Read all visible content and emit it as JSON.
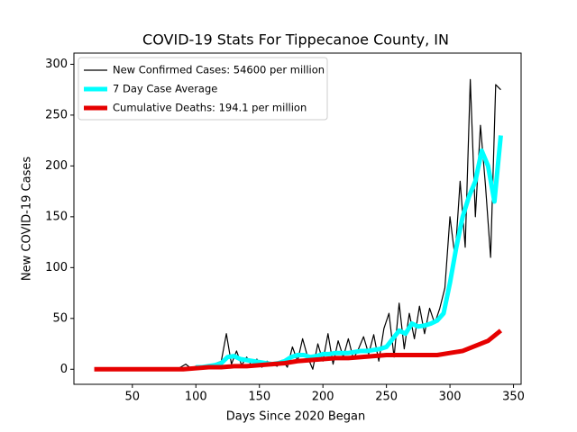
{
  "chart_data": {
    "type": "line",
    "title": "COVID-19 Stats For Tippecanoe County, IN",
    "xlabel": "Days Since 2020 Began",
    "ylabel": "New COVID-19 Cases",
    "xlim": [
      4,
      356
    ],
    "ylim": [
      -14.8,
      311
    ],
    "xticks": [
      50,
      100,
      150,
      200,
      250,
      300,
      350
    ],
    "yticks": [
      0,
      50,
      100,
      150,
      200,
      250,
      300
    ],
    "legend": "upper left",
    "series": [
      {
        "name": "New Confirmed Cases: 54600 per million",
        "color": "#000000",
        "x": [
          84,
          88,
          92,
          96,
          100,
          104,
          108,
          112,
          116,
          120,
          124,
          128,
          132,
          136,
          140,
          144,
          148,
          152,
          156,
          160,
          164,
          168,
          172,
          176,
          180,
          184,
          188,
          192,
          196,
          200,
          204,
          208,
          212,
          216,
          220,
          224,
          228,
          232,
          236,
          240,
          244,
          248,
          252,
          256,
          260,
          264,
          268,
          272,
          276,
          280,
          284,
          288,
          292,
          296,
          300,
          304,
          308,
          312,
          316,
          320,
          324,
          328,
          332,
          336,
          340
        ],
        "values": [
          0,
          2,
          5,
          1,
          3,
          0,
          4,
          2,
          6,
          8,
          35,
          5,
          18,
          4,
          12,
          3,
          10,
          2,
          8,
          5,
          3,
          9,
          2,
          22,
          8,
          30,
          12,
          0,
          25,
          8,
          35,
          5,
          28,
          12,
          30,
          10,
          20,
          32,
          15,
          34,
          8,
          40,
          55,
          12,
          65,
          20,
          55,
          30,
          62,
          35,
          60,
          45,
          60,
          80,
          150,
          110,
          185,
          120,
          285,
          150,
          240,
          180,
          110,
          280,
          275
        ]
      },
      {
        "name": "7 Day Case Average",
        "color": "#00ffff",
        "x": [
          100,
          105,
          110,
          115,
          120,
          125,
          130,
          135,
          140,
          145,
          150,
          155,
          160,
          165,
          170,
          175,
          180,
          185,
          190,
          195,
          200,
          205,
          210,
          215,
          220,
          225,
          230,
          235,
          240,
          245,
          250,
          255,
          260,
          265,
          270,
          275,
          280,
          285,
          290,
          295,
          300,
          305,
          310,
          315,
          320,
          325,
          330,
          335,
          340
        ],
        "values": [
          2,
          2,
          3,
          4,
          6,
          12,
          13,
          10,
          9,
          8,
          7,
          6,
          5,
          6,
          8,
          12,
          14,
          14,
          12,
          13,
          15,
          15,
          16,
          16,
          16,
          17,
          18,
          18,
          19,
          20,
          22,
          30,
          38,
          35,
          45,
          42,
          43,
          45,
          48,
          55,
          85,
          120,
          150,
          170,
          185,
          215,
          200,
          165,
          230
        ]
      },
      {
        "name": "Cumulative Deaths: 194.1 per million",
        "color": "#e60000",
        "x": [
          20,
          30,
          40,
          50,
          60,
          70,
          80,
          90,
          100,
          110,
          120,
          130,
          140,
          150,
          160,
          170,
          180,
          190,
          200,
          210,
          220,
          230,
          240,
          250,
          260,
          270,
          280,
          290,
          300,
          310,
          320,
          330,
          340
        ],
        "values": [
          0,
          0,
          0,
          0,
          0,
          0,
          0,
          0,
          1,
          2,
          2,
          3,
          3,
          4,
          5,
          6,
          8,
          9,
          10,
          11,
          11,
          12,
          13,
          14,
          14,
          14,
          14,
          14,
          16,
          18,
          23,
          28,
          38
        ]
      }
    ]
  }
}
